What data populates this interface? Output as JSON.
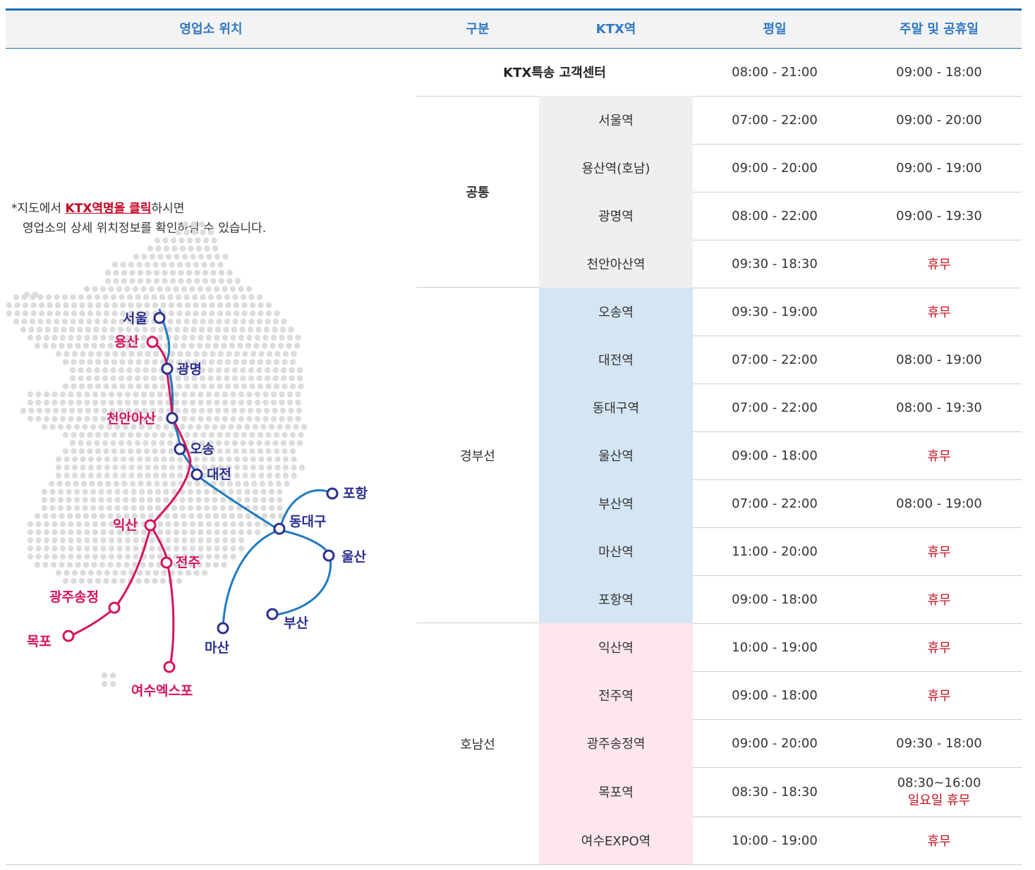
{
  "header": {
    "col_location": "영업소 위치",
    "col_category": "구분",
    "col_station": "KTX역",
    "col_weekday": "평일",
    "col_weekend": "주말 및 공휴일"
  },
  "guide": {
    "prefix": "*지도에서 ",
    "highlight": "KTX역명을 클릭",
    "suffix": "하시면",
    "line2": "영업소의 상세 위치정보를 확인하실 수 있습니다."
  },
  "map": {
    "stations": {
      "seoul": "서울",
      "yongsan": "용산",
      "gwangmyeong": "광명",
      "cheonanasan": "천안아산",
      "osong": "오송",
      "daejeon": "대전",
      "pohang": "포항",
      "dongdaegu": "동대구",
      "ulsan": "울산",
      "busan": "부산",
      "masan": "마산",
      "iksan": "익산",
      "jeonju": "전주",
      "gwangjusongjeong": "광주송정",
      "mokpo": "목포",
      "yeosuexpo": "여수엑스포"
    },
    "colors": {
      "gyeongbu_line": "#1f7bbf",
      "gyeongbu_station": "#2b2f8f",
      "honam_line": "#d6125f",
      "honam_station": "#d6125f"
    }
  },
  "ktx_center": {
    "name": "KTX특송 고객센터",
    "weekday": "08:00 - 21:00",
    "weekend": "09:00 - 18:00"
  },
  "groups": {
    "common": "공통",
    "gyeongbu": "경부선",
    "honam": "호남선"
  },
  "rows": [
    {
      "station": "서울역",
      "weekday": "07:00 - 22:00",
      "weekend": "09:00 - 20:00"
    },
    {
      "station": "용산역(호남)",
      "weekday": "09:00 - 20:00",
      "weekend": "09:00 - 19:00"
    },
    {
      "station": "광명역",
      "weekday": "08:00 - 22:00",
      "weekend": "09:00 - 19:30"
    },
    {
      "station": "천안아산역",
      "weekday": "09:30 - 18:30",
      "weekend": "휴무"
    },
    {
      "station": "오송역",
      "weekday": "09:30 - 19:00",
      "weekend": "휴무"
    },
    {
      "station": "대전역",
      "weekday": "07:00 - 22:00",
      "weekend": "08:00 - 19:00"
    },
    {
      "station": "동대구역",
      "weekday": "07:00 - 22:00",
      "weekend": "08:00 - 19:30"
    },
    {
      "station": "울산역",
      "weekday": "09:00 - 18:00",
      "weekend": "휴무"
    },
    {
      "station": "부산역",
      "weekday": "07:00 - 22:00",
      "weekend": "08:00 - 19:00"
    },
    {
      "station": "마산역",
      "weekday": "11:00 - 20:00",
      "weekend": "휴무"
    },
    {
      "station": "포항역",
      "weekday": "09:00 - 18:00",
      "weekend": "휴무"
    },
    {
      "station": "익산역",
      "weekday": "10:00 - 19:00",
      "weekend": "휴무"
    },
    {
      "station": "전주역",
      "weekday": "09:00 - 18:00",
      "weekend": "휴무"
    },
    {
      "station": "광주송정역",
      "weekday": "09:00 - 20:00",
      "weekend": "09:30 - 18:00"
    },
    {
      "station": "목포역",
      "weekday": "08:30 - 18:30",
      "weekend": "08:30~16:00",
      "weekend_note": "일요일 휴무"
    },
    {
      "station": "여수EXPO역",
      "weekday": "10:00 - 19:00",
      "weekend": "휴무"
    }
  ]
}
